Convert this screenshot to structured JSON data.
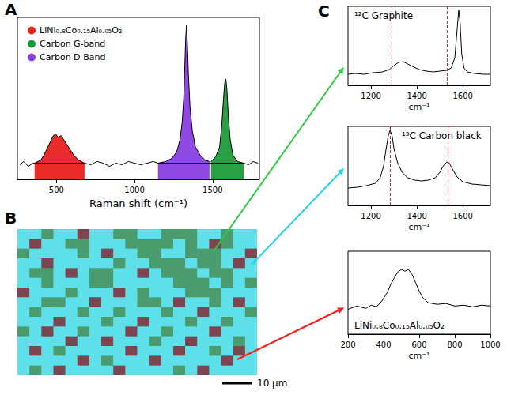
{
  "chart_data": [
    {
      "type": "area",
      "panel": "A",
      "xlabel": "Raman shift (cm⁻¹)",
      "xlim": [
        250,
        1800
      ],
      "xticks": [
        500,
        1000,
        1500
      ],
      "ylim": [
        0,
        100
      ],
      "yticks": [],
      "tick_labels": "x",
      "grid": false,
      "legend": "top-left",
      "series": [
        {
          "type": "line",
          "color": "#000000",
          "x": [
            265,
            290,
            320,
            350,
            360,
            680,
            720,
            760,
            800,
            840,
            880,
            920,
            960,
            1000,
            1040,
            1080,
            1120,
            1150,
            1700,
            1730,
            1760,
            1790
          ],
          "values": [
            9,
            11,
            8,
            10,
            10,
            10,
            9,
            11,
            10,
            8,
            10,
            9,
            11,
            10,
            9,
            10,
            11,
            10,
            10,
            9,
            11,
            10
          ]
        },
        {
          "name": "LiNi₀.₈Co₀.₁₅Al₀.₀₅O₂",
          "color": "#e8201e",
          "x": [
            360,
            400,
            420,
            440,
            460,
            480,
            495,
            510,
            530,
            550,
            570,
            590,
            610,
            640,
            680
          ],
          "values": [
            10,
            12,
            15,
            19,
            23,
            27,
            28,
            26,
            27,
            24,
            21,
            18,
            15,
            12,
            10
          ]
        },
        {
          "name": "Carbon G-band",
          "color": "#1f9a3a",
          "x": [
            1490,
            1520,
            1545,
            1560,
            1570,
            1578,
            1585,
            1592,
            1600,
            1612,
            1630,
            1660,
            1700
          ],
          "values": [
            11,
            14,
            20,
            35,
            50,
            60,
            62,
            55,
            40,
            25,
            15,
            11,
            10
          ]
        },
        {
          "name": "Carbon D-Band",
          "color": "#8a3fe0",
          "x": [
            1150,
            1200,
            1240,
            1270,
            1290,
            1305,
            1315,
            1322,
            1328,
            1333,
            1338,
            1345,
            1355,
            1370,
            1390,
            1420,
            1450,
            1480
          ],
          "values": [
            10,
            11,
            13,
            17,
            24,
            35,
            50,
            70,
            88,
            95,
            85,
            65,
            45,
            30,
            20,
            15,
            12,
            11
          ]
        }
      ]
    },
    {
      "type": "heatmap",
      "panel": "B",
      "tick_labels": false,
      "scale_bar": "10 μm",
      "colors": [
        "#5de0ea",
        "#4a9b6e",
        "#7b4650"
      ],
      "cells": [
        [
          0,
          0,
          1,
          0,
          0,
          2,
          0,
          0,
          1,
          1,
          0,
          0,
          1,
          1,
          1,
          0,
          0,
          1,
          0,
          0
        ],
        [
          0,
          2,
          0,
          0,
          1,
          1,
          0,
          0,
          0,
          1,
          1,
          1,
          1,
          0,
          1,
          0,
          2,
          1,
          0,
          0
        ],
        [
          1,
          0,
          0,
          0,
          0,
          1,
          0,
          2,
          0,
          0,
          1,
          1,
          0,
          0,
          1,
          1,
          1,
          0,
          0,
          2
        ],
        [
          0,
          0,
          2,
          0,
          0,
          0,
          0,
          0,
          1,
          0,
          0,
          1,
          1,
          1,
          0,
          1,
          1,
          0,
          2,
          0
        ],
        [
          0,
          1,
          1,
          0,
          2,
          0,
          1,
          1,
          0,
          0,
          2,
          0,
          1,
          1,
          1,
          0,
          1,
          1,
          0,
          0
        ],
        [
          0,
          0,
          1,
          0,
          0,
          0,
          1,
          1,
          0,
          0,
          0,
          0,
          0,
          1,
          1,
          1,
          0,
          1,
          0,
          1
        ],
        [
          2,
          0,
          0,
          0,
          1,
          0,
          0,
          0,
          2,
          0,
          1,
          0,
          0,
          0,
          1,
          1,
          1,
          0,
          0,
          0
        ],
        [
          0,
          0,
          1,
          1,
          0,
          0,
          2,
          0,
          0,
          0,
          1,
          1,
          0,
          2,
          0,
          0,
          1,
          0,
          2,
          0
        ],
        [
          0,
          1,
          0,
          0,
          0,
          1,
          0,
          0,
          1,
          0,
          0,
          0,
          1,
          0,
          0,
          2,
          0,
          0,
          0,
          1
        ],
        [
          0,
          0,
          0,
          2,
          0,
          0,
          0,
          1,
          0,
          0,
          2,
          0,
          0,
          0,
          1,
          0,
          0,
          1,
          0,
          0
        ],
        [
          1,
          0,
          2,
          0,
          0,
          1,
          0,
          0,
          0,
          2,
          0,
          0,
          1,
          0,
          0,
          0,
          2,
          0,
          0,
          0
        ],
        [
          0,
          0,
          0,
          0,
          2,
          0,
          0,
          2,
          0,
          0,
          0,
          1,
          0,
          0,
          2,
          0,
          0,
          0,
          1,
          0
        ],
        [
          0,
          2,
          0,
          1,
          0,
          0,
          0,
          0,
          0,
          2,
          0,
          0,
          0,
          2,
          0,
          0,
          1,
          0,
          2,
          0
        ],
        [
          0,
          0,
          0,
          0,
          0,
          2,
          0,
          1,
          0,
          0,
          0,
          2,
          0,
          0,
          0,
          0,
          0,
          2,
          0,
          0
        ],
        [
          0,
          1,
          0,
          2,
          0,
          0,
          0,
          0,
          2,
          0,
          0,
          0,
          0,
          1,
          0,
          2,
          0,
          0,
          0,
          0
        ]
      ]
    },
    {
      "type": "line",
      "panel": "C",
      "annotation": "¹²C Graphite",
      "xlabel": "cm⁻¹",
      "xlim": [
        1100,
        1720
      ],
      "xticks": [
        1200,
        1400,
        1600
      ],
      "ylim": [
        0,
        100
      ],
      "yticks": [],
      "tick_labels": "x",
      "grid": false,
      "vlines": [
        1290,
        1530
      ],
      "series": [
        {
          "color": "#000000",
          "x": [
            1100,
            1130,
            1170,
            1210,
            1250,
            1280,
            1300,
            1320,
            1340,
            1360,
            1380,
            1410,
            1440,
            1470,
            1500,
            1530,
            1550,
            1565,
            1575,
            1582,
            1588,
            1595,
            1605,
            1620,
            1650,
            1690,
            1720
          ],
          "values": [
            14,
            15,
            14,
            16,
            17,
            20,
            25,
            29,
            30,
            27,
            24,
            20,
            18,
            17,
            18,
            19,
            22,
            35,
            70,
            95,
            80,
            40,
            22,
            17,
            15,
            14,
            14
          ]
        }
      ]
    },
    {
      "type": "line",
      "annotation": "¹³C Carbon black",
      "xlabel": "cm⁻¹",
      "xlim": [
        1100,
        1720
      ],
      "xticks": [
        1200,
        1400,
        1600
      ],
      "ylim": [
        0,
        100
      ],
      "yticks": [],
      "tick_labels": "x",
      "grid": false,
      "vlines": [
        1283,
        1535
      ],
      "series": [
        {
          "color": "#000000",
          "x": [
            1100,
            1140,
            1180,
            1220,
            1240,
            1255,
            1265,
            1275,
            1283,
            1292,
            1300,
            1315,
            1335,
            1360,
            1390,
            1420,
            1450,
            1480,
            1500,
            1515,
            1530,
            1540,
            1555,
            1575,
            1600,
            1640,
            1680,
            1720
          ],
          "values": [
            22,
            23,
            25,
            28,
            35,
            50,
            70,
            88,
            95,
            88,
            72,
            55,
            42,
            35,
            32,
            31,
            32,
            35,
            42,
            50,
            55,
            54,
            46,
            36,
            30,
            27,
            26,
            25
          ]
        }
      ]
    },
    {
      "type": "line",
      "annotation": "LiNi₀.₈Co₀.₁₅Al₀.₀₅O₂",
      "xlabel": "cm⁻¹",
      "xlim": [
        200,
        1000
      ],
      "xticks": [
        200,
        400,
        600,
        800,
        1000
      ],
      "ylim": [
        0,
        100
      ],
      "yticks": [],
      "tick_labels": "x",
      "grid": false,
      "series": [
        {
          "color": "#000000",
          "x": [
            200,
            250,
            300,
            330,
            360,
            390,
            420,
            440,
            460,
            480,
            500,
            520,
            540,
            560,
            580,
            600,
            620,
            650,
            700,
            750,
            800,
            850,
            900,
            950,
            1000
          ],
          "values": [
            30,
            34,
            31,
            35,
            33,
            40,
            50,
            60,
            68,
            75,
            78,
            76,
            78,
            72,
            62,
            52,
            44,
            38,
            36,
            37,
            34,
            35,
            33,
            35,
            34
          ]
        }
      ]
    }
  ]
}
